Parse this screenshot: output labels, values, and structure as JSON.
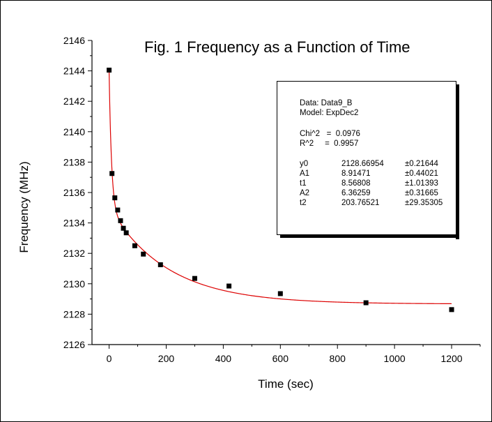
{
  "chart_data": {
    "type": "scatter",
    "title": "Fig. 1  Frequency as a Function of Time",
    "xlabel": "Time (sec)",
    "ylabel": "Frequency (MHz)",
    "xlim": [
      -60,
      1300
    ],
    "ylim": [
      2126,
      2146
    ],
    "xticks": [
      0,
      200,
      400,
      600,
      800,
      1000,
      1200
    ],
    "yticks": [
      2126,
      2128,
      2130,
      2132,
      2134,
      2136,
      2138,
      2140,
      2142,
      2144,
      2146
    ],
    "grid": false,
    "series": [
      {
        "kind": "points",
        "marker": "square",
        "color": "#000000",
        "x": [
          0,
          10,
          20,
          30,
          40,
          50,
          60,
          90,
          120,
          180,
          300,
          420,
          600,
          900,
          1200
        ],
        "y": [
          2144.05,
          2137.25,
          2135.65,
          2134.85,
          2134.15,
          2133.65,
          2133.35,
          2132.5,
          2131.95,
          2131.25,
          2130.35,
          2129.85,
          2129.35,
          2128.75,
          2128.3
        ]
      },
      {
        "kind": "fit",
        "model": "ExpDec2",
        "color": "#dd0000",
        "params": {
          "y0": 2128.66954,
          "A1": 8.91471,
          "t1": 8.56808,
          "A2": 6.36259,
          "t2": 203.76521
        },
        "xrange": [
          0,
          1200
        ]
      }
    ]
  },
  "fit_box": {
    "data_label": "Data: Data9_B",
    "model_label": "Model: ExpDec2",
    "chi2": "Chi^2   =  0.0976",
    "r2": "R^2     =  0.9957",
    "params": [
      {
        "name": "y0",
        "value": "2128.66954",
        "error": "±0.21644"
      },
      {
        "name": "A1",
        "value": "8.91471",
        "error": "±0.44021"
      },
      {
        "name": "t1",
        "value": "8.56808",
        "error": "±1.01393"
      },
      {
        "name": "A2",
        "value": "6.36259",
        "error": "±0.31665"
      },
      {
        "name": "t2",
        "value": "203.76521",
        "error": "±29.35305"
      }
    ]
  }
}
